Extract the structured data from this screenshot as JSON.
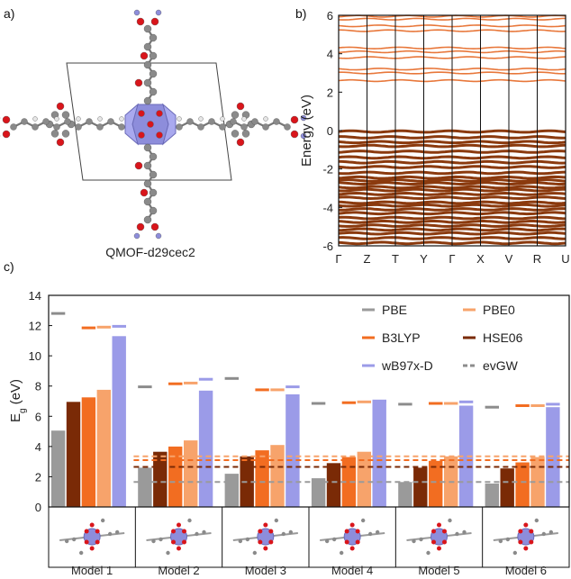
{
  "panels": {
    "a": {
      "label": "a)",
      "caption": "QMOF-d29cec2"
    },
    "b": {
      "label": "b)"
    },
    "c": {
      "label": "c)"
    }
  },
  "colors": {
    "PBE": "#9a9a9a",
    "B3LYP": "#f26d21",
    "wB97x-D": "#9b9be8",
    "PBE0": "#f7a36b",
    "HSE06": "#7a2a06",
    "evGW": "#8c8c8c",
    "valence_band": "#8b3a0e",
    "conduction_band": "#e8773a",
    "atom_O": "#d9151b",
    "atom_C": "#8a8a8a",
    "atom_H": "#e6e6e6",
    "atom_metal": "#8d8ddb"
  },
  "chart_data": [
    {
      "type": "line",
      "panel": "b",
      "ylabel": "Energy (eV)",
      "ylim": [
        -6,
        6
      ],
      "yticks": [
        -6,
        -4,
        -2,
        0,
        2,
        4,
        6
      ],
      "kpath": [
        "Γ",
        "Z",
        "T",
        "Y",
        "Γ",
        "X",
        "V",
        "R",
        "U"
      ],
      "conduction_band_energies": [
        2.6,
        3.0,
        3.2,
        3.8,
        4.1,
        4.3,
        5.2,
        5.45,
        5.8,
        5.95
      ],
      "valence_band_energies": [
        -0.05,
        -0.35,
        -0.6,
        -0.8,
        -1.1,
        -1.4,
        -1.65,
        -1.9,
        -2.2,
        -2.45,
        -2.6,
        -2.75,
        -2.95,
        -3.1,
        -3.3,
        -3.5,
        -3.75,
        -3.9,
        -4.1,
        -4.3,
        -4.55,
        -4.75,
        -4.95,
        -5.15,
        -5.35,
        -5.6,
        -5.85
      ]
    },
    {
      "type": "bar",
      "panel": "c",
      "ylabel_main": "E",
      "ylabel_sub": "g",
      "ylabel_unit": " (eV)",
      "ylim": [
        0,
        14
      ],
      "yticks": [
        0,
        2,
        4,
        6,
        8,
        10,
        12,
        14
      ],
      "categories": [
        "Model 1",
        "Model 2",
        "Model 3",
        "Model 4",
        "Model 5",
        "Model 6"
      ],
      "series": [
        {
          "name": "PBE",
          "values": [
            5.05,
            2.6,
            2.2,
            1.9,
            1.65,
            1.55
          ]
        },
        {
          "name": "HSE06",
          "values": [
            6.95,
            3.65,
            3.35,
            2.9,
            2.6,
            2.55
          ]
        },
        {
          "name": "B3LYP",
          "values": [
            7.25,
            4.0,
            3.75,
            3.3,
            3.05,
            2.95
          ]
        },
        {
          "name": "PBE0",
          "values": [
            7.75,
            4.4,
            4.1,
            3.65,
            3.35,
            3.3
          ]
        },
        {
          "name": "wB97x-D",
          "values": [
            11.3,
            7.7,
            7.45,
            7.1,
            6.7,
            6.6
          ]
        }
      ],
      "top_markers": [
        {
          "name": "evGW",
          "values": [
            12.8,
            7.95,
            8.5,
            6.85,
            6.8,
            6.6
          ]
        },
        {
          "name": "B3LYP",
          "values": [
            11.85,
            8.15,
            7.75,
            6.9,
            6.85,
            6.7
          ]
        },
        {
          "name": "PBE0",
          "values": [
            11.9,
            8.2,
            7.75,
            6.95,
            6.85,
            6.7
          ]
        },
        {
          "name": "wB97x-D",
          "values": [
            11.95,
            8.45,
            7.95,
            7.0,
            6.95,
            6.8
          ]
        }
      ],
      "reference_lines": [
        {
          "name": "PBE0",
          "value": 3.35
        },
        {
          "name": "B3LYP",
          "value": 3.1
        },
        {
          "name": "HSE06",
          "value": 2.65
        },
        {
          "name": "PBE",
          "value": 1.65
        }
      ],
      "legend": {
        "placement": "top-right",
        "entries": [
          "PBE",
          "PBE0",
          "B3LYP",
          "HSE06",
          "wB97x-D",
          "evGW"
        ]
      }
    }
  ]
}
